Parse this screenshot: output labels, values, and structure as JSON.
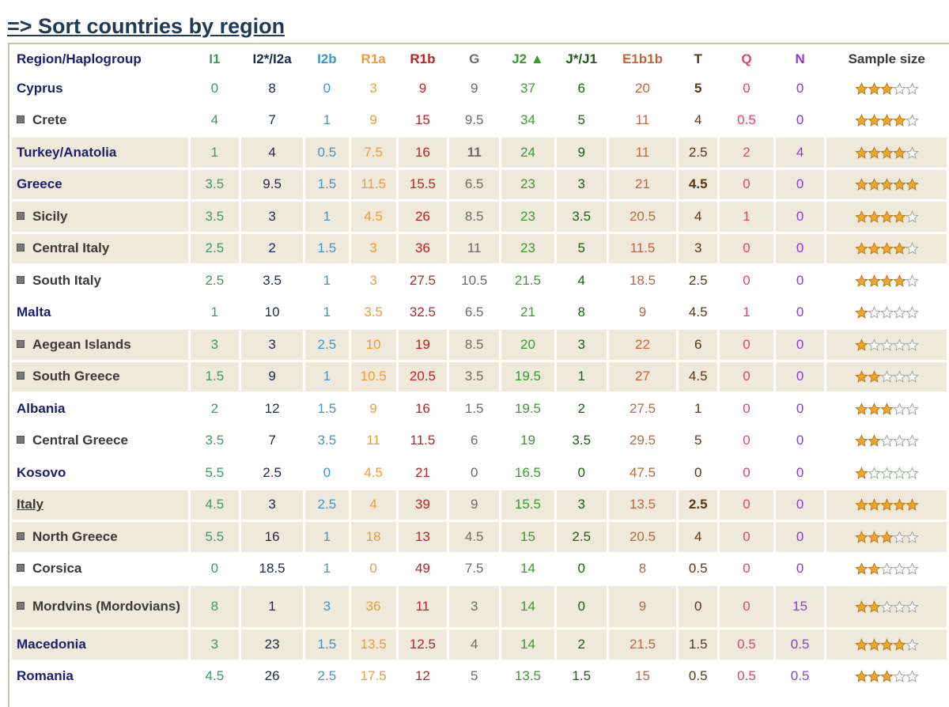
{
  "title": "=> Sort countries by region",
  "header": {
    "region": "Region/Haplogroup",
    "columns": [
      {
        "label": "I1",
        "color": "#3e9a5f"
      },
      {
        "label": "I2*/I2a",
        "color": "#1b2a4a"
      },
      {
        "label": "I2b",
        "color": "#3c97c9"
      },
      {
        "label": "R1a",
        "color": "#ef9b35"
      },
      {
        "label": "R1b",
        "color": "#c0211f"
      },
      {
        "label": "G",
        "color": "#6c6c6c"
      },
      {
        "label": "J2 ▲",
        "color": "#3b9a2e"
      },
      {
        "label": "J*/J1",
        "color": "#1d5e13"
      },
      {
        "label": "E1b1b",
        "color": "#c0663a"
      },
      {
        "label": "T",
        "color": "#5a3613"
      },
      {
        "label": "Q",
        "color": "#e6416b"
      },
      {
        "label": "N",
        "color": "#8b3be0"
      }
    ],
    "sample": "Sample size",
    "sample_color": "#3a3a3a"
  },
  "star_colors": {
    "filled": "#f0a62b",
    "filled_stroke": "#b8781a",
    "empty": "#ffffff",
    "empty_stroke": "#9aa79a"
  },
  "rows": [
    {
      "name": "Cyprus",
      "kind": "country",
      "shaded": false,
      "values": [
        "0",
        "8",
        "0",
        "3",
        "9",
        "9",
        "37",
        "6",
        "20",
        "5",
        "0",
        "0"
      ],
      "bold_cols": [
        9
      ],
      "stars": 3
    },
    {
      "name": "Crete",
      "kind": "subregion",
      "shaded": false,
      "values": [
        "4",
        "7",
        "1",
        "9",
        "15",
        "9.5",
        "34",
        "5",
        "11",
        "4",
        "0.5",
        "0"
      ],
      "bold_cols": [],
      "stars": 4
    },
    {
      "name": "Turkey/Anatolia",
      "kind": "country",
      "shaded": true,
      "values": [
        "1",
        "4",
        "0.5",
        "7.5",
        "16",
        "11",
        "24",
        "9",
        "11",
        "2.5",
        "2",
        "4"
      ],
      "bold_cols": [
        5
      ],
      "stars": 4
    },
    {
      "name": "Greece",
      "kind": "country",
      "shaded": true,
      "values": [
        "3.5",
        "9.5",
        "1.5",
        "11.5",
        "15.5",
        "6.5",
        "23",
        "3",
        "21",
        "4.5",
        "0",
        "0"
      ],
      "bold_cols": [
        9
      ],
      "stars": 5
    },
    {
      "name": "Sicily",
      "kind": "subregion",
      "shaded": true,
      "values": [
        "3.5",
        "3",
        "1",
        "4.5",
        "26",
        "8.5",
        "23",
        "3.5",
        "20.5",
        "4",
        "1",
        "0"
      ],
      "bold_cols": [],
      "stars": 4
    },
    {
      "name": "Central Italy",
      "kind": "subregion",
      "shaded": true,
      "values": [
        "2.5",
        "2",
        "1.5",
        "3",
        "36",
        "11",
        "23",
        "5",
        "11.5",
        "3",
        "0",
        "0"
      ],
      "bold_cols": [],
      "stars": 4
    },
    {
      "name": "South Italy",
      "kind": "subregion",
      "shaded": false,
      "values": [
        "2.5",
        "3.5",
        "1",
        "3",
        "27.5",
        "10.5",
        "21.5",
        "4",
        "18.5",
        "2.5",
        "0",
        "0"
      ],
      "bold_cols": [],
      "stars": 4
    },
    {
      "name": "Malta",
      "kind": "country",
      "shaded": false,
      "values": [
        "1",
        "10",
        "1",
        "3.5",
        "32.5",
        "6.5",
        "21",
        "8",
        "9",
        "4.5",
        "1",
        "0"
      ],
      "bold_cols": [],
      "stars": 1
    },
    {
      "name": "Aegean Islands",
      "kind": "subregion",
      "shaded": true,
      "values": [
        "3",
        "3",
        "2.5",
        "10",
        "19",
        "8.5",
        "20",
        "3",
        "22",
        "6",
        "0",
        "0"
      ],
      "bold_cols": [],
      "stars": 1
    },
    {
      "name": "South Greece",
      "kind": "subregion",
      "shaded": true,
      "values": [
        "1.5",
        "9",
        "1",
        "10.5",
        "20.5",
        "3.5",
        "19.5",
        "1",
        "27",
        "4.5",
        "0",
        "0"
      ],
      "bold_cols": [],
      "stars": 2
    },
    {
      "name": "Albania",
      "kind": "country",
      "shaded": false,
      "values": [
        "2",
        "12",
        "1.5",
        "9",
        "16",
        "1.5",
        "19.5",
        "2",
        "27.5",
        "1",
        "0",
        "0"
      ],
      "bold_cols": [],
      "stars": 3
    },
    {
      "name": "Central Greece",
      "kind": "subregion",
      "shaded": false,
      "values": [
        "3.5",
        "7",
        "3.5",
        "11",
        "11.5",
        "6",
        "19",
        "3.5",
        "29.5",
        "5",
        "0",
        "0"
      ],
      "bold_cols": [],
      "stars": 2
    },
    {
      "name": "Kosovo",
      "kind": "country",
      "shaded": false,
      "values": [
        "5.5",
        "2.5",
        "0",
        "4.5",
        "21",
        "0",
        "16.5",
        "0",
        "47.5",
        "0",
        "0",
        "0"
      ],
      "bold_cols": [],
      "stars": 1
    },
    {
      "name": "Italy",
      "kind": "link",
      "shaded": true,
      "values": [
        "4.5",
        "3",
        "2.5",
        "4",
        "39",
        "9",
        "15.5",
        "3",
        "13.5",
        "2.5",
        "0",
        "0"
      ],
      "bold_cols": [
        9
      ],
      "stars": 5
    },
    {
      "name": "North Greece",
      "kind": "subregion",
      "shaded": true,
      "values": [
        "5.5",
        "16",
        "1",
        "18",
        "13",
        "4.5",
        "15",
        "2.5",
        "20.5",
        "4",
        "0",
        "0"
      ],
      "bold_cols": [],
      "stars": 3
    },
    {
      "name": "Corsica",
      "kind": "subregion",
      "shaded": false,
      "values": [
        "0",
        "18.5",
        "1",
        "0",
        "49",
        "7.5",
        "14",
        "0",
        "8",
        "0.5",
        "0",
        "0"
      ],
      "bold_cols": [],
      "stars": 2
    },
    {
      "name": "Mordvins (Mordovians)",
      "kind": "subregion",
      "shaded": true,
      "tall": true,
      "values": [
        "8",
        "1",
        "3",
        "36",
        "11",
        "3",
        "14",
        "0",
        "9",
        "0",
        "0",
        "15"
      ],
      "bold_cols": [],
      "stars": 2
    },
    {
      "name": "Macedonia",
      "kind": "country",
      "shaded": true,
      "values": [
        "3",
        "23",
        "1.5",
        "13.5",
        "12.5",
        "4",
        "14",
        "2",
        "21.5",
        "1.5",
        "0.5",
        "0.5"
      ],
      "bold_cols": [],
      "stars": 4
    },
    {
      "name": "Romania",
      "kind": "country",
      "shaded": false,
      "values": [
        "4.5",
        "26",
        "2.5",
        "17.5",
        "12",
        "5",
        "13.5",
        "1.5",
        "15",
        "0.5",
        "0.5",
        "0.5"
      ],
      "bold_cols": [],
      "stars": 3
    }
  ]
}
